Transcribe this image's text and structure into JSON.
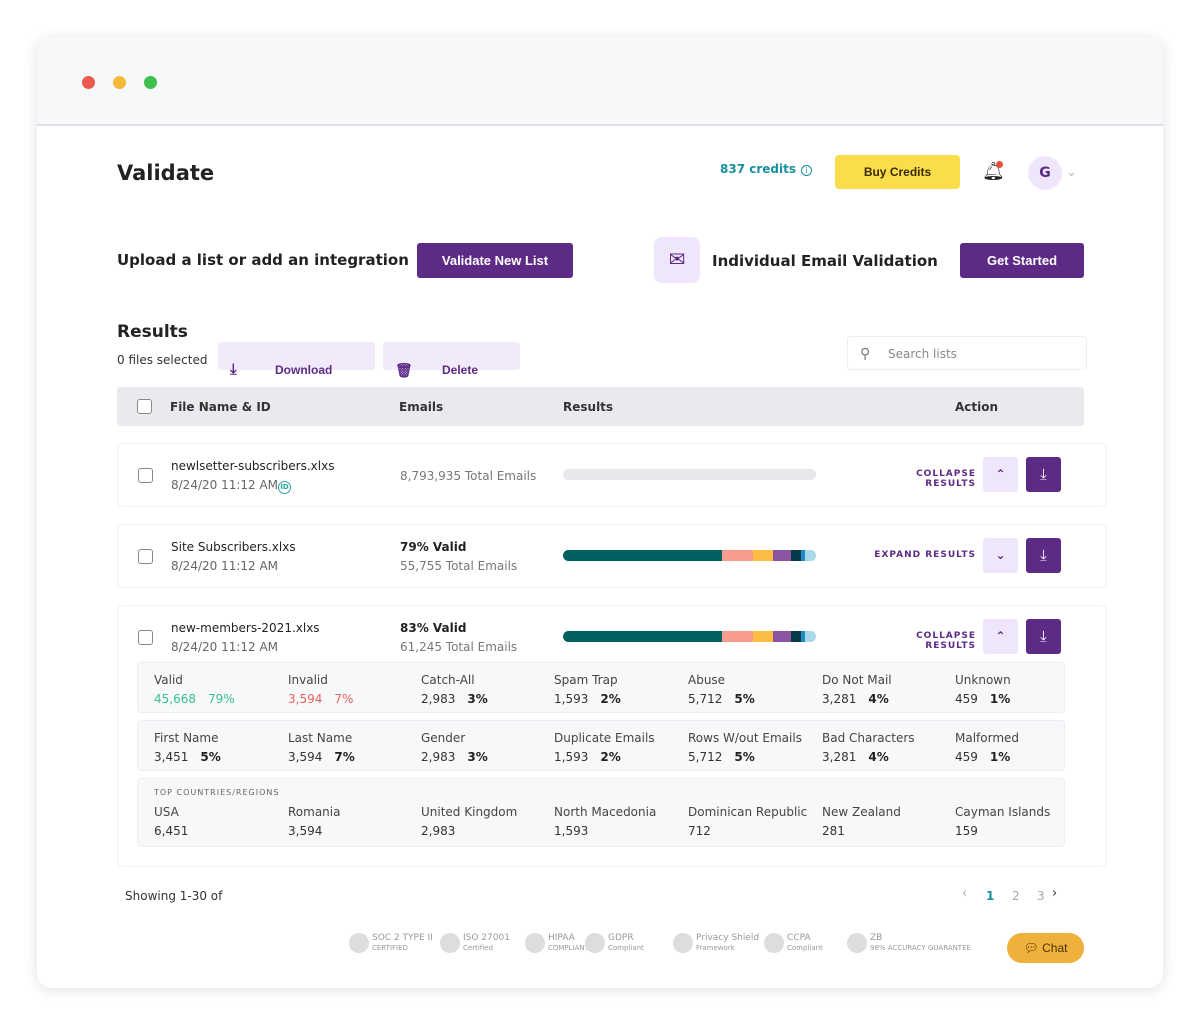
{
  "window": {
    "controls": [
      "#ec5a4f",
      "#f5b939",
      "#3fc04a"
    ]
  },
  "header": {
    "title": "Validate",
    "credits": "837 credits",
    "info_icon": "info-icon",
    "buy_label": "Buy Credits",
    "avatar_initial": "G"
  },
  "upload": {
    "label": "Upload a list or add an integration",
    "button": "Validate New List"
  },
  "individual": {
    "label": "Individual Email Validation",
    "button": "Get Started"
  },
  "results": {
    "title": "Results",
    "selected": "0 files selected",
    "download": "Download",
    "delete": "Delete",
    "search_placeholder": "Search lists"
  },
  "table": {
    "headers": [
      "File Name & ID",
      "Emails",
      "Results",
      "Action"
    ]
  },
  "segment_colors": [
    "#005f5f",
    "#f89d8e",
    "#fbbd43",
    "#8b55a4",
    "#073b4c",
    "#1f8ac0",
    "#a8d8ea"
  ],
  "rows": [
    {
      "name": "newlsetter-subscribers.xlxs",
      "date": "8/24/20 11:12 AM",
      "id_badge": "ID",
      "valid": "",
      "total": "8,793,935 Total Emails",
      "action": "COLLAPSE RESULTS",
      "segments": []
    },
    {
      "name": "Site Subscribers.xlxs",
      "date": "8/24/20 11:12 AM",
      "valid": "79% Valid",
      "total": "55,755 Total Emails",
      "action": "EXPAND RESULTS",
      "segments": [
        63,
        12,
        8,
        7,
        4,
        1.5,
        4.5
      ]
    },
    {
      "name": "new-members-2021.xlxs",
      "date": "8/24/20 11:12 AM",
      "valid": "83% Valid",
      "total": "61,245 Total Emails",
      "action": "COLLAPSE RESULTS",
      "segments": [
        63,
        12,
        8,
        7,
        4,
        1.5,
        4.5
      ]
    }
  ],
  "details": {
    "status": [
      {
        "label": "Valid",
        "count": "45,668",
        "pct": "79%"
      },
      {
        "label": "Invalid",
        "count": "3,594",
        "pct": "7%"
      },
      {
        "label": "Catch-All",
        "count": "2,983",
        "pct": "3%"
      },
      {
        "label": "Spam Trap",
        "count": "1,593",
        "pct": "2%"
      },
      {
        "label": "Abuse",
        "count": "5,712",
        "pct": "5%"
      },
      {
        "label": "Do Not Mail",
        "count": "3,281",
        "pct": "4%"
      },
      {
        "label": "Unknown",
        "count": "459",
        "pct": "1%"
      }
    ],
    "fields": [
      {
        "label": "First Name",
        "count": "3,451",
        "pct": "5%"
      },
      {
        "label": "Last Name",
        "count": "3,594",
        "pct": "7%"
      },
      {
        "label": "Gender",
        "count": "2,983",
        "pct": "3%"
      },
      {
        "label": "Duplicate Emails",
        "count": "1,593",
        "pct": "2%"
      },
      {
        "label": "Rows W/out Emails",
        "count": "5,712",
        "pct": "5%"
      },
      {
        "label": "Bad Characters",
        "count": "3,281",
        "pct": "4%"
      },
      {
        "label": "Malformed",
        "count": "459",
        "pct": "1%"
      }
    ],
    "countries_title": "TOP COUNTRIES/REGIONS",
    "countries": [
      {
        "label": "USA",
        "count": "6,451"
      },
      {
        "label": "Romania",
        "count": "3,594"
      },
      {
        "label": "United Kingdom",
        "count": "2,983"
      },
      {
        "label": "North Macedonia",
        "count": "1,593"
      },
      {
        "label": "Dominican Republic",
        "count": "712"
      },
      {
        "label": "New Zealand",
        "count": "281"
      },
      {
        "label": "Cayman Islands",
        "count": "159"
      }
    ]
  },
  "footer": {
    "showing": "Showing 1-30 of",
    "pages": [
      "1",
      "2",
      "3"
    ],
    "current_page": "1",
    "badges": [
      [
        "SOC 2 TYPE II",
        "CERTIFIED"
      ],
      [
        "ISO 27001",
        "Certified"
      ],
      [
        "HIPAA",
        "COMPLIANT"
      ],
      [
        "GDPR",
        "Compliant"
      ],
      [
        "Privacy Shield",
        "Framework"
      ],
      [
        "CCPA",
        "Compliant"
      ],
      [
        "ZB",
        "98% ACCURACY GUARANTEE"
      ]
    ],
    "chat": "Chat"
  }
}
